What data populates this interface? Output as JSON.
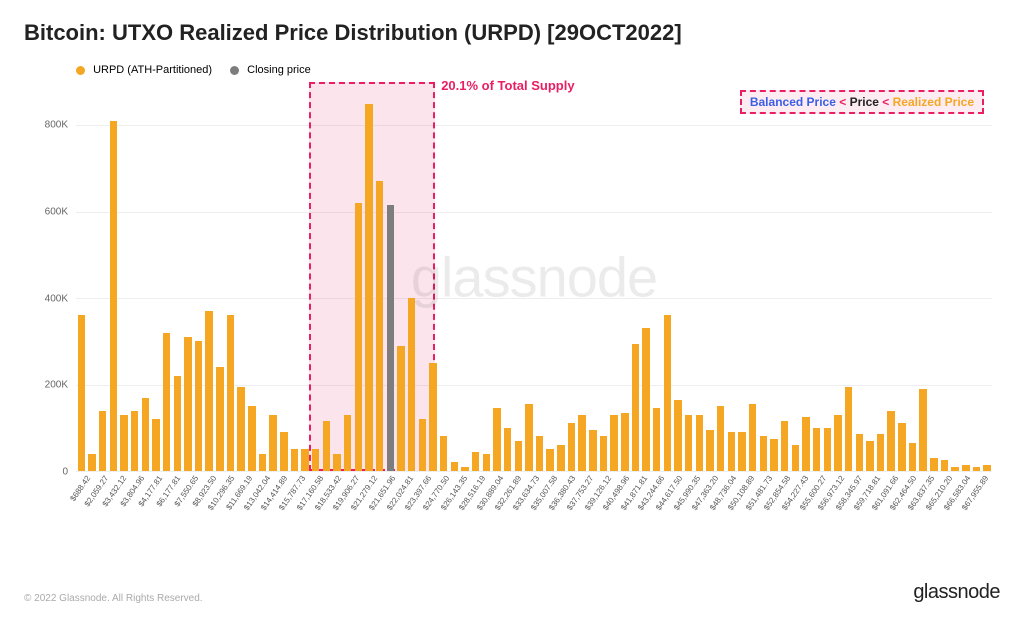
{
  "title": "Bitcoin: UTXO Realized Price Distribution (URPD) [29OCT2022]",
  "legend": {
    "series1": {
      "label": "URPD (ATH-Partitioned)",
      "color": "#f5a623"
    },
    "series2": {
      "label": "Closing price",
      "color": "#7d7d7d"
    }
  },
  "chart": {
    "type": "bar",
    "ylim": [
      0,
      900000
    ],
    "yticks": [
      0,
      200000,
      400000,
      600000,
      800000
    ],
    "ytick_labels": [
      "0",
      "200K",
      "400K",
      "600K",
      "800K"
    ],
    "grid_color": "#eeeeee",
    "bar_color": "#f5a623",
    "closing_bar_color": "#7d7d7d",
    "background_color": "#ffffff",
    "highlight": {
      "fill": "rgba(233,30,99,0.12)",
      "border": "#e91e63",
      "start_index": 13,
      "end_index": 19,
      "label": "20.1% of Total Supply",
      "label_color": "#e91e63"
    },
    "info_badge": {
      "border": "#e91e63",
      "fill": "rgba(233,30,99,0.08)",
      "parts": [
        {
          "text": "Balanced Price",
          "color": "#3b5ee6"
        },
        {
          "text": " < ",
          "color": "#e91e63"
        },
        {
          "text": "Price",
          "color": "#222"
        },
        {
          "text": " < ",
          "color": "#e91e63"
        },
        {
          "text": "Realized Price",
          "color": "#f5a623"
        }
      ]
    },
    "watermark": "glassnode",
    "categories": [
      "$688.42",
      "$2,059.27",
      "$3,432.12",
      "$3,804.96",
      "$4,177.81",
      "$6,177.81",
      "$7,550.65",
      "$8,923.50",
      "$10,296.35",
      "$11,669.19",
      "$13,042.04",
      "$14,414.89",
      "$15,787.73",
      "$17,160.58",
      "$18,533.42",
      "$19,906.27",
      "$21,279.12",
      "$21,651.96",
      "$22,024.81",
      "$23,397.66",
      "$24,770.50",
      "$26,143.35",
      "$28,516.19",
      "$30,889.04",
      "$32,261.89",
      "$33,634.73",
      "$35,007.58",
      "$36,380.43",
      "$37,753.27",
      "$39,126.12",
      "$40,498.96",
      "$41,871.81",
      "$43,244.66",
      "$44,617.50",
      "$45,990.35",
      "$47,363.20",
      "$48,736.04",
      "$50,108.89",
      "$51,481.73",
      "$52,854.58",
      "$54,227.43",
      "$55,600.27",
      "$56,973.12",
      "$58,345.97",
      "$59,718.81",
      "$61,091.66",
      "$62,464.50",
      "$63,837.35",
      "$65,210.20",
      "$66,583.04",
      "$67,955.89"
    ],
    "bars": [
      {
        "v": 360000
      },
      {
        "v": 40000
      },
      {
        "v": 140000
      },
      {
        "v": 810000
      },
      {
        "v": 130000
      },
      {
        "v": 140000
      },
      {
        "v": 170000
      },
      {
        "v": 120000
      },
      {
        "v": 320000
      },
      {
        "v": 220000
      },
      {
        "v": 310000
      },
      {
        "v": 300000
      },
      {
        "v": 370000
      },
      {
        "v": 240000
      },
      {
        "v": 361000
      },
      {
        "v": 195000
      },
      {
        "v": 150000
      },
      {
        "v": 40000
      },
      {
        "v": 130000
      },
      {
        "v": 90000
      },
      {
        "v": 50000
      },
      {
        "v": 50000
      },
      {
        "v": 50000
      },
      {
        "v": 115000
      },
      {
        "v": 40000
      },
      {
        "v": 130000
      },
      {
        "v": 620000
      },
      {
        "v": 850000
      },
      {
        "v": 670000
      },
      {
        "v": 615000,
        "closing": true
      },
      {
        "v": 290000
      },
      {
        "v": 400000
      },
      {
        "v": 120000
      },
      {
        "v": 250000
      },
      {
        "v": 80000
      },
      {
        "v": 20000
      },
      {
        "v": 10000
      },
      {
        "v": 45000
      },
      {
        "v": 40000
      },
      {
        "v": 145000
      },
      {
        "v": 100000
      },
      {
        "v": 70000
      },
      {
        "v": 155000
      },
      {
        "v": 80000
      },
      {
        "v": 50000
      },
      {
        "v": 60000
      },
      {
        "v": 110000
      },
      {
        "v": 130000
      },
      {
        "v": 95000
      },
      {
        "v": 80000
      },
      {
        "v": 130000
      },
      {
        "v": 135000
      },
      {
        "v": 295000
      },
      {
        "v": 330000
      },
      {
        "v": 145000
      },
      {
        "v": 360000
      },
      {
        "v": 165000
      },
      {
        "v": 130000
      },
      {
        "v": 130000
      },
      {
        "v": 95000
      },
      {
        "v": 150000
      },
      {
        "v": 90000
      },
      {
        "v": 90000
      },
      {
        "v": 155000
      },
      {
        "v": 80000
      },
      {
        "v": 75000
      },
      {
        "v": 115000
      },
      {
        "v": 60000
      },
      {
        "v": 125000
      },
      {
        "v": 100000
      },
      {
        "v": 100000
      },
      {
        "v": 130000
      },
      {
        "v": 195000
      },
      {
        "v": 85000
      },
      {
        "v": 70000
      },
      {
        "v": 85000
      },
      {
        "v": 140000
      },
      {
        "v": 110000
      },
      {
        "v": 65000
      },
      {
        "v": 190000
      },
      {
        "v": 30000
      },
      {
        "v": 25000
      },
      {
        "v": 10000
      },
      {
        "v": 15000
      },
      {
        "v": 10000
      },
      {
        "v": 15000
      }
    ]
  },
  "footer": {
    "copyright": "© 2022 Glassnode. All Rights Reserved.",
    "brand": "glassnode"
  }
}
